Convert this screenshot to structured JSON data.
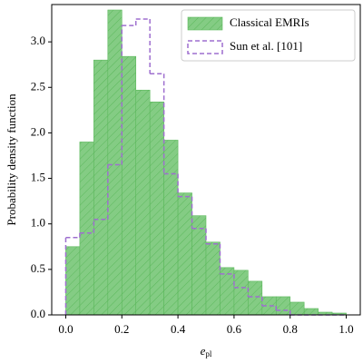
{
  "chart_data": {
    "type": "histogram",
    "x_label": "e",
    "x_label_sub": "pl",
    "y_label": "Probability density function",
    "bins": [
      0,
      0.05,
      0.1,
      0.15,
      0.2,
      0.25,
      0.3,
      0.35,
      0.4,
      0.45,
      0.5,
      0.55,
      0.6,
      0.65,
      0.7,
      0.75,
      0.8,
      0.85,
      0.9,
      0.95,
      1.0
    ],
    "series": [
      {
        "name": "Classical EMRIs",
        "color": "#84cc84",
        "edge_color": "#5cb85c",
        "style": "hatched",
        "values": [
          0.75,
          1.9,
          2.8,
          3.35,
          2.84,
          2.47,
          2.34,
          1.92,
          1.34,
          1.09,
          0.8,
          0.52,
          0.49,
          0.37,
          0.2,
          0.2,
          0.14,
          0.07,
          0.03,
          0.02
        ]
      },
      {
        "name": "Sun et al. [101]",
        "color": "#9e6fcf",
        "style": "dashed-step",
        "values": [
          0.85,
          0.9,
          1.05,
          1.65,
          3.18,
          3.25,
          2.65,
          1.55,
          1.3,
          0.95,
          0.78,
          0.45,
          0.3,
          0.2,
          0.1,
          0.05,
          0,
          0,
          0,
          0
        ]
      }
    ],
    "xlim": [
      -0.05,
      1.05
    ],
    "ylim": [
      0,
      3.41
    ],
    "xticks": [
      {
        "value": 0,
        "label": "0.0"
      },
      0.2,
      0.4,
      0.6,
      0.8,
      {
        "value": 1,
        "label": "1.0"
      }
    ],
    "yticks": [
      {
        "value": 0,
        "label": "0.0"
      },
      0.5,
      {
        "value": 1,
        "label": "1.0"
      },
      1.5,
      {
        "value": 2,
        "label": "2.0"
      },
      2.5,
      {
        "value": 3,
        "label": "3.0"
      }
    ],
    "legend": "upper right"
  }
}
